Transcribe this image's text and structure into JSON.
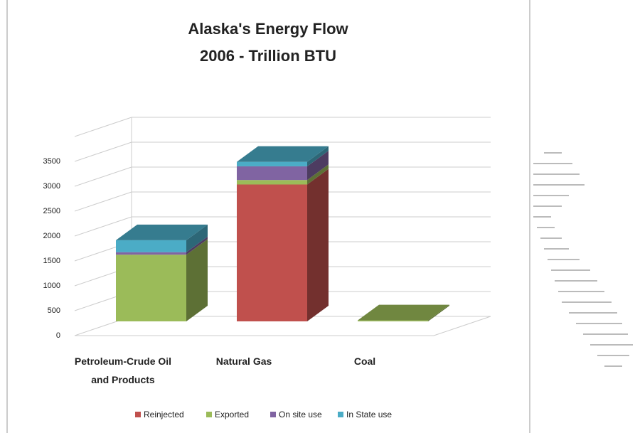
{
  "chart_data": {
    "type": "bar3d_stacked",
    "title": "Alaska's Energy Flow",
    "subtitle": "2006 - Trillion BTU",
    "categories": [
      "Petroleum-Crude Oil and Products",
      "Natural Gas",
      "Coal"
    ],
    "series": [
      {
        "name": "Reinjected",
        "color": "#c0504d",
        "values": [
          0,
          2750,
          0
        ]
      },
      {
        "name": "Exported",
        "color": "#9bbb59",
        "values": [
          1340,
          90,
          20
        ]
      },
      {
        "name": "On site use",
        "color": "#8064a2",
        "values": [
          50,
          275,
          0
        ]
      },
      {
        "name": "In State use",
        "color": "#4bacc6",
        "values": [
          240,
          90,
          0
        ]
      }
    ],
    "ylim": [
      0,
      4000
    ],
    "yticks": [
      0,
      500,
      1000,
      1500,
      2000,
      2500,
      3000,
      3500
    ],
    "grid": true,
    "legend": "bottom"
  }
}
